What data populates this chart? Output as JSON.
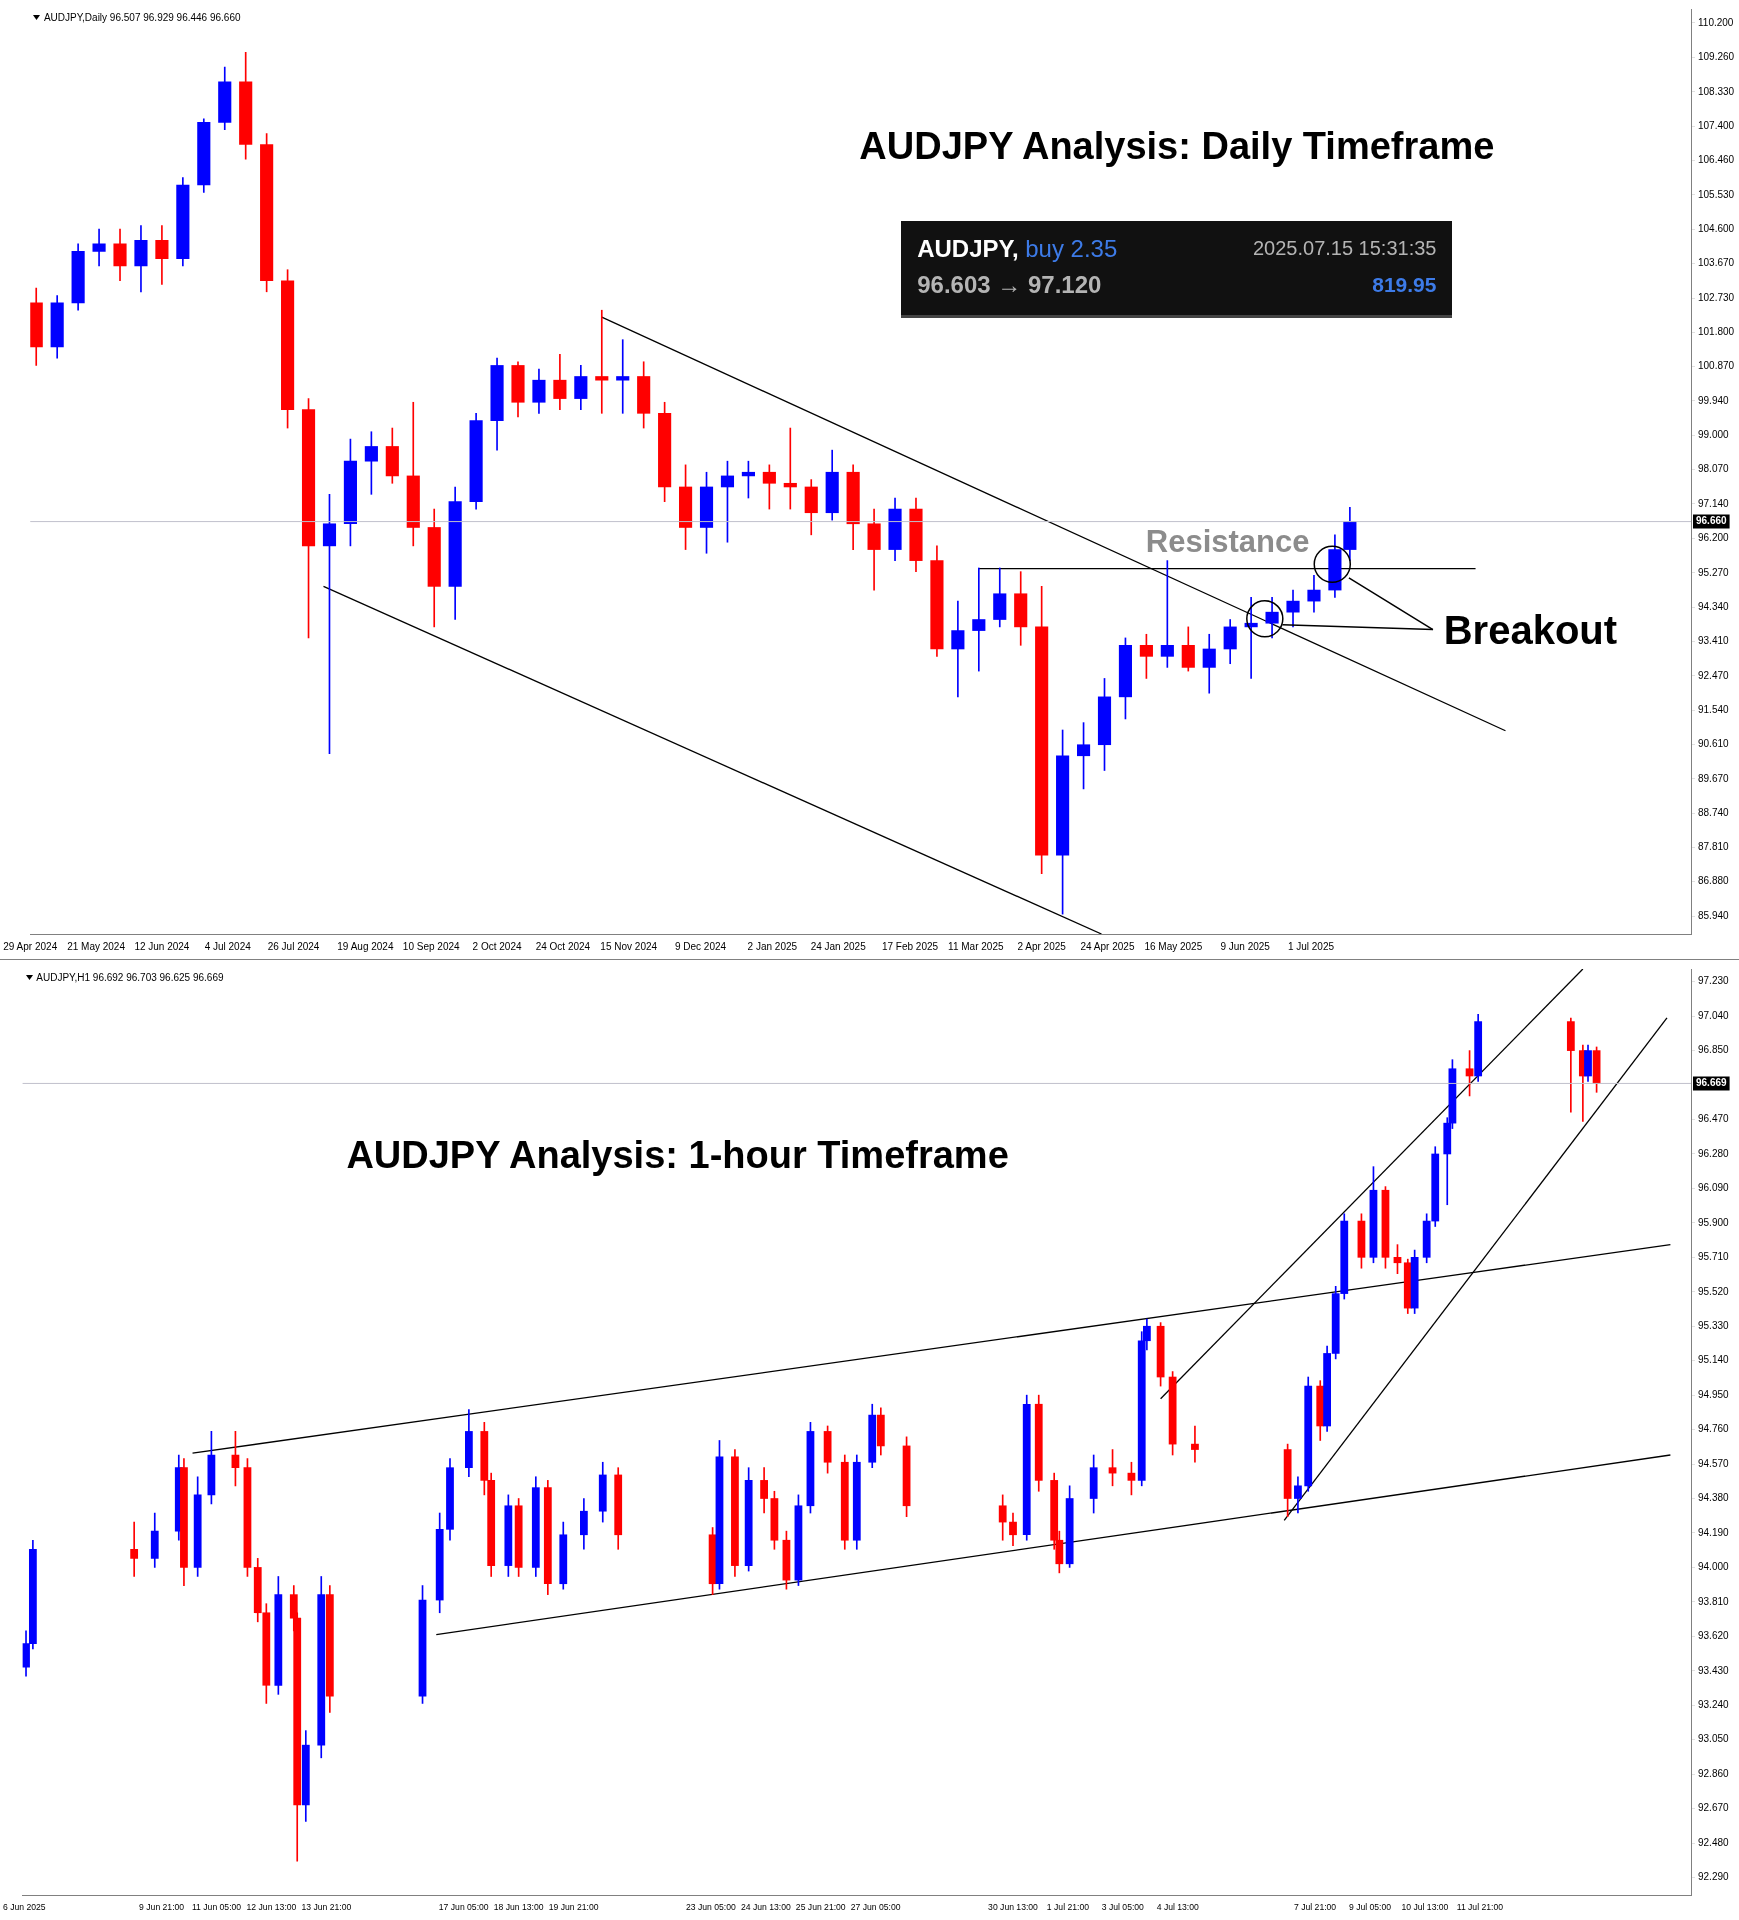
{
  "chart_data": [
    {
      "type": "candlestick",
      "title": "AUDJPY Analysis: Daily Timeframe",
      "annotations": [
        "AUDJPY,Daily  96.507 96.929 96.446 96.660",
        "AUDJPY,",
        "buy 2.35",
        "2025.07.15 15:31:35",
        "96.603 → 97.120",
        "819.95",
        "Resistance",
        "Breakout"
      ],
      "x": [
        "2024-05-01",
        "2024-05-08",
        "2024-05-15",
        "2024-05-22",
        "2024-05-29",
        "2024-06-05",
        "2024-06-12",
        "2024-06-19",
        "2024-06-26",
        "2024-07-03",
        "2024-07-10",
        "2024-07-17",
        "2024-07-24",
        "2024-07-31",
        "2024-08-07",
        "2024-08-14",
        "2024-08-21",
        "2024-08-28",
        "2024-09-04",
        "2024-09-11",
        "2024-09-18",
        "2024-09-25",
        "2024-10-02",
        "2024-10-09",
        "2024-10-16",
        "2024-10-23",
        "2024-10-30",
        "2024-11-06",
        "2024-11-13",
        "2024-11-20",
        "2024-11-27",
        "2024-12-04",
        "2024-12-11",
        "2024-12-18",
        "2024-12-25",
        "2025-01-01",
        "2025-01-08",
        "2025-01-15",
        "2025-01-22",
        "2025-01-29",
        "2025-02-05",
        "2025-02-12",
        "2025-02-19",
        "2025-02-26",
        "2025-03-05",
        "2025-03-12",
        "2025-03-19",
        "2025-03-26",
        "2025-04-02",
        "2025-04-09",
        "2025-04-16",
        "2025-04-23",
        "2025-04-30",
        "2025-05-07",
        "2025-05-14",
        "2025-05-21",
        "2025-05-28",
        "2025-06-04",
        "2025-06-11",
        "2025-06-18",
        "2025-06-25",
        "2025-07-02",
        "2025-07-09",
        "2025-07-14"
      ],
      "ohlc": [
        [
          102.6,
          103.0,
          100.9,
          101.4
        ],
        [
          101.4,
          102.8,
          101.1,
          102.6
        ],
        [
          102.6,
          104.2,
          102.4,
          104.0
        ],
        [
          104.0,
          104.6,
          103.6,
          104.2
        ],
        [
          104.2,
          104.6,
          103.2,
          103.6
        ],
        [
          103.6,
          104.7,
          102.9,
          104.3
        ],
        [
          104.3,
          104.7,
          103.1,
          103.8
        ],
        [
          103.8,
          106.0,
          103.6,
          105.8
        ],
        [
          105.8,
          107.6,
          105.6,
          107.5
        ],
        [
          107.5,
          109.0,
          107.3,
          108.6
        ],
        [
          108.6,
          109.4,
          106.5,
          106.9
        ],
        [
          106.9,
          107.2,
          102.9,
          103.2
        ],
        [
          103.2,
          103.5,
          99.2,
          99.7
        ],
        [
          99.7,
          100.0,
          93.5,
          96.0
        ],
        [
          96.0,
          97.4,
          90.36,
          96.6
        ],
        [
          96.6,
          98.9,
          96.0,
          98.3
        ],
        [
          98.3,
          99.1,
          97.4,
          98.7
        ],
        [
          98.7,
          99.2,
          97.7,
          97.9
        ],
        [
          97.9,
          99.9,
          96.0,
          96.5
        ],
        [
          96.5,
          97.0,
          93.8,
          94.9
        ],
        [
          94.9,
          97.6,
          94.0,
          97.2
        ],
        [
          97.2,
          99.6,
          97.0,
          99.4
        ],
        [
          99.4,
          101.1,
          98.6,
          100.9
        ],
        [
          100.9,
          101.0,
          99.5,
          99.9
        ],
        [
          99.9,
          100.8,
          99.6,
          100.5
        ],
        [
          100.5,
          101.2,
          99.7,
          100.0
        ],
        [
          100.0,
          100.9,
          99.7,
          100.6
        ],
        [
          100.6,
          102.4,
          99.6,
          100.5
        ],
        [
          100.5,
          101.6,
          99.6,
          100.6
        ],
        [
          100.6,
          101.0,
          99.2,
          99.6
        ],
        [
          99.6,
          99.9,
          97.2,
          97.6
        ],
        [
          97.6,
          98.2,
          95.9,
          96.5
        ],
        [
          96.5,
          98.0,
          95.8,
          97.6
        ],
        [
          97.6,
          98.3,
          96.1,
          97.9
        ],
        [
          97.9,
          98.3,
          97.3,
          98.0
        ],
        [
          98.0,
          98.2,
          97.0,
          97.7
        ],
        [
          97.7,
          99.2,
          97.0,
          97.6
        ],
        [
          97.6,
          97.8,
          96.3,
          96.9
        ],
        [
          96.9,
          98.6,
          96.7,
          98.0
        ],
        [
          98.0,
          98.2,
          95.9,
          96.6
        ],
        [
          96.6,
          97.0,
          94.8,
          95.9
        ],
        [
          95.9,
          97.3,
          95.6,
          97.0
        ],
        [
          97.0,
          97.3,
          95.3,
          95.6
        ],
        [
          95.6,
          96.0,
          93.0,
          93.2
        ],
        [
          93.2,
          94.5,
          91.9,
          93.7
        ],
        [
          93.7,
          95.4,
          92.6,
          94.0
        ],
        [
          94.0,
          95.4,
          93.8,
          94.7
        ],
        [
          94.7,
          95.3,
          93.3,
          93.8
        ],
        [
          93.8,
          94.9,
          87.1,
          87.6
        ],
        [
          87.6,
          91.0,
          86.0,
          90.3
        ],
        [
          90.3,
          91.2,
          89.4,
          90.6
        ],
        [
          90.6,
          92.4,
          89.9,
          91.9
        ],
        [
          91.9,
          93.5,
          91.3,
          93.3
        ],
        [
          93.3,
          93.6,
          92.4,
          93.0
        ],
        [
          93.0,
          95.6,
          92.7,
          93.3
        ],
        [
          93.3,
          93.8,
          92.6,
          92.7
        ],
        [
          92.7,
          93.6,
          92.0,
          93.2
        ],
        [
          93.2,
          94.0,
          92.8,
          93.8
        ],
        [
          93.8,
          94.6,
          92.4,
          93.9
        ],
        [
          93.9,
          94.6,
          93.5,
          94.2
        ],
        [
          94.2,
          94.8,
          93.8,
          94.5
        ],
        [
          94.5,
          95.2,
          94.2,
          94.8
        ],
        [
          94.8,
          96.3,
          94.6,
          95.9
        ],
        [
          95.9,
          97.05,
          95.6,
          96.66
        ]
      ],
      "colors": [
        "#ff0000",
        "#0000ff",
        "#0000ff",
        "#0000ff",
        "#ff0000",
        "#0000ff",
        "#ff0000",
        "#0000ff",
        "#0000ff",
        "#0000ff",
        "#ff0000",
        "#ff0000",
        "#ff0000",
        "#ff0000",
        "#0000ff",
        "#0000ff",
        "#0000ff",
        "#ff0000",
        "#ff0000",
        "#ff0000",
        "#0000ff",
        "#0000ff",
        "#0000ff",
        "#ff0000",
        "#0000ff",
        "#ff0000",
        "#0000ff",
        "#ff0000",
        "#0000ff",
        "#ff0000",
        "#ff0000",
        "#ff0000",
        "#0000ff",
        "#0000ff",
        "#0000ff",
        "#ff0000",
        "#ff0000",
        "#ff0000",
        "#0000ff",
        "#ff0000",
        "#ff0000",
        "#0000ff",
        "#ff0000",
        "#ff0000",
        "#0000ff",
        "#0000ff",
        "#0000ff",
        "#ff0000",
        "#ff0000",
        "#0000ff",
        "#0000ff",
        "#0000ff",
        "#0000ff",
        "#ff0000",
        "#0000ff",
        "#ff0000",
        "#0000ff",
        "#0000ff",
        "#0000ff",
        "#0000ff",
        "#0000ff",
        "#0000ff",
        "#0000ff",
        "#0000ff"
      ],
      "series": [
        {
          "type": "line",
          "color": "#000000",
          "x": [
            "2024-11-06",
            "2025-09-04"
          ],
          "values": [
            102.21,
            90.98
          ]
        },
        {
          "type": "line",
          "color": "#000000",
          "x": [
            "2024-08-05",
            "2025-04-22"
          ],
          "values": [
            94.9,
            85.46
          ]
        },
        {
          "type": "line",
          "color": "#000000",
          "x": [
            "2025-03-12",
            "2025-08-25"
          ],
          "values": [
            95.38,
            95.38
          ]
        }
      ],
      "ref_lines": [
        {
          "axis": "y",
          "value": 96.66,
          "label": "96.660",
          "color": "#c0c0cc"
        }
      ],
      "xlim": [
        "2024-04-29",
        "2025-11-05"
      ],
      "xticks": [
        {
          "value": "2024-04-29",
          "label": "29 Apr 2024"
        },
        {
          "value": "2024-05-21",
          "label": "21 May 2024"
        },
        {
          "value": "2024-06-12",
          "label": "12 Jun 2024"
        },
        {
          "value": "2024-07-04",
          "label": "4 Jul 2024"
        },
        {
          "value": "2024-07-26",
          "label": "26 Jul 2024"
        },
        {
          "value": "2024-08-19",
          "label": "19 Aug 2024"
        },
        {
          "value": "2024-09-10",
          "label": "10 Sep 2024"
        },
        {
          "value": "2024-10-02",
          "label": "2 Oct 2024"
        },
        {
          "value": "2024-10-24",
          "label": "24 Oct 2024"
        },
        {
          "value": "2024-11-15",
          "label": "15 Nov 2024"
        },
        {
          "value": "2024-12-09",
          "label": "9 Dec 2024"
        },
        {
          "value": "2025-01-02",
          "label": "2 Jan 2025"
        },
        {
          "value": "2025-01-24",
          "label": "24 Jan 2025"
        },
        {
          "value": "2025-02-17",
          "label": "17 Feb 2025"
        },
        {
          "value": "2025-03-11",
          "label": "11 Mar 2025"
        },
        {
          "value": "2025-04-02",
          "label": "2 Apr 2025"
        },
        {
          "value": "2025-04-24",
          "label": "24 Apr 2025"
        },
        {
          "value": "2025-05-16",
          "label": "16 May 2025"
        },
        {
          "value": "2025-06-09",
          "label": "9 Jun 2025"
        },
        {
          "value": "2025-07-01",
          "label": "1 Jul 2025"
        }
      ],
      "ylim": [
        85.46,
        110.58
      ],
      "yticks": [
        {
          "value": 110.2,
          "label": "110.200"
        },
        {
          "value": 109.26,
          "label": "109.260"
        },
        {
          "value": 108.33,
          "label": "108.330"
        },
        {
          "value": 107.4,
          "label": "107.400"
        },
        {
          "value": 106.46,
          "label": "106.460"
        },
        {
          "value": 105.53,
          "label": "105.530"
        },
        {
          "value": 104.6,
          "label": "104.600"
        },
        {
          "value": 103.67,
          "label": "103.670"
        },
        {
          "value": 102.73,
          "label": "102.730"
        },
        {
          "value": 101.8,
          "label": "101.800"
        },
        {
          "value": 100.87,
          "label": "100.870"
        },
        {
          "value": 99.94,
          "label": "99.940"
        },
        {
          "value": 99,
          "label": "99.000"
        },
        {
          "value": 98.07,
          "label": "98.070"
        },
        {
          "value": 97.14,
          "label": "97.140"
        },
        {
          "value": 96.2,
          "label": "96.200"
        },
        {
          "value": 95.27,
          "label": "95.270"
        },
        {
          "value": 94.34,
          "label": "94.340"
        },
        {
          "value": 93.41,
          "label": "93.410"
        },
        {
          "value": 92.47,
          "label": "92.470"
        },
        {
          "value": 91.54,
          "label": "91.540"
        },
        {
          "value": 90.61,
          "label": "90.610"
        },
        {
          "value": 89.67,
          "label": "89.670"
        },
        {
          "value": 88.74,
          "label": "88.740"
        },
        {
          "value": 87.81,
          "label": "87.810"
        },
        {
          "value": 86.88,
          "label": "86.880"
        },
        {
          "value": 85.94,
          "label": "85.940"
        }
      ]
    },
    {
      "type": "candlestick",
      "title": "AUDJPY Analysis: 1-hour Timeframe",
      "annotations": [
        "AUDJPY,H1  96.692 96.703 96.625 96.669"
      ],
      "x": [
        "2025-06-06T14:00",
        "2025-06-06T18:00",
        "2025-06-09T05:00",
        "2025-06-09T17:00",
        "2025-06-10T07:00",
        "2025-06-10T10:00",
        "2025-06-10T18:00",
        "2025-06-11T02:00",
        "2025-06-11T16:00",
        "2025-06-11T23:00",
        "2025-06-12T05:00",
        "2025-06-12T10:00",
        "2025-06-12T17:00",
        "2025-06-13T02:00",
        "2025-06-13T04:00",
        "2025-06-13T09:00",
        "2025-06-13T18:00",
        "2025-06-13T23:00",
        "2025-06-16T05:00",
        "2025-06-16T15:00",
        "2025-06-16T21:00",
        "2025-06-17T08:00",
        "2025-06-17T17:00",
        "2025-06-17T21:00",
        "2025-06-18T07:00",
        "2025-06-18T13:00",
        "2025-06-18T23:00",
        "2025-06-19T06:00",
        "2025-06-19T15:00",
        "2025-06-20T03:00",
        "2025-06-20T14:00",
        "2025-06-20T23:00",
        "2025-06-23T06:00",
        "2025-06-23T10:00",
        "2025-06-23T19:00",
        "2025-06-24T03:00",
        "2025-06-24T12:00",
        "2025-06-24T18:00",
        "2025-06-25T01:00",
        "2025-06-25T08:00",
        "2025-06-25T15:00",
        "2025-06-26T01:00",
        "2025-06-26T11:00",
        "2025-06-26T18:00",
        "2025-06-27T03:00",
        "2025-06-27T08:00",
        "2025-06-27T23:00",
        "2025-06-30T07:00",
        "2025-06-30T13:00",
        "2025-06-30T21:00",
        "2025-07-01T04:00",
        "2025-07-01T13:00",
        "2025-07-01T16:00",
        "2025-07-01T22:00",
        "2025-07-02T12:00",
        "2025-07-02T23:00",
        "2025-07-03T10:00",
        "2025-07-03T16:00",
        "2025-07-03T19:00",
        "2025-07-04T03:00",
        "2025-07-04T10:00",
        "2025-07-04T23:00",
        "2025-07-07T05:00",
        "2025-07-07T11:00",
        "2025-07-07T17:00",
        "2025-07-08T00:00",
        "2025-07-08T04:00",
        "2025-07-08T09:00",
        "2025-07-08T14:00",
        "2025-07-09T00:00",
        "2025-07-09T07:00",
        "2025-07-09T14:00",
        "2025-07-09T21:00",
        "2025-07-10T03:00",
        "2025-07-10T07:00",
        "2025-07-10T14:00",
        "2025-07-10T19:00",
        "2025-07-11T02:00",
        "2025-07-11T05:00",
        "2025-07-11T15:00",
        "2025-07-11T20:00",
        "2025-07-14T02:00",
        "2025-07-14T09:00",
        "2025-07-14T12:00",
        "2025-07-14T17:00"
      ],
      "ohlc": [
        [
          93.45,
          93.65,
          93.4,
          93.58
        ],
        [
          93.58,
          94.15,
          93.55,
          94.1
        ],
        [
          94.1,
          94.25,
          93.95,
          94.05
        ],
        [
          94.05,
          94.3,
          94.0,
          94.2
        ],
        [
          94.2,
          94.62,
          94.15,
          94.55
        ],
        [
          94.55,
          94.6,
          93.9,
          94.0
        ],
        [
          94.0,
          94.5,
          93.95,
          94.4
        ],
        [
          94.4,
          94.75,
          94.35,
          94.62
        ],
        [
          94.62,
          94.75,
          94.45,
          94.55
        ],
        [
          94.55,
          94.6,
          93.95,
          94.0
        ],
        [
          94.0,
          94.05,
          93.7,
          93.75
        ],
        [
          93.75,
          93.8,
          93.25,
          93.35
        ],
        [
          93.35,
          93.95,
          93.3,
          93.85
        ],
        [
          93.85,
          93.9,
          93.65,
          93.72
        ],
        [
          93.72,
          93.75,
          92.38,
          92.69
        ],
        [
          92.69,
          93.1,
          92.6,
          93.02
        ],
        [
          93.02,
          93.95,
          92.95,
          93.85
        ],
        [
          93.85,
          93.9,
          93.2,
          93.29
        ],
        [
          93.29,
          93.9,
          93.25,
          93.82
        ],
        [
          93.82,
          94.3,
          93.75,
          94.21
        ],
        [
          94.21,
          94.6,
          94.15,
          94.55
        ],
        [
          94.55,
          94.87,
          94.5,
          94.75
        ],
        [
          94.75,
          94.8,
          94.4,
          94.48
        ],
        [
          94.48,
          94.52,
          93.95,
          94.01
        ],
        [
          94.01,
          94.4,
          93.95,
          94.34
        ],
        [
          94.34,
          94.38,
          93.95,
          94.0
        ],
        [
          94.0,
          94.5,
          93.95,
          94.44
        ],
        [
          94.44,
          94.48,
          93.85,
          93.91
        ],
        [
          93.91,
          94.25,
          93.88,
          94.18
        ],
        [
          94.18,
          94.38,
          94.1,
          94.31
        ],
        [
          94.31,
          94.58,
          94.25,
          94.51
        ],
        [
          94.51,
          94.55,
          94.1,
          94.18
        ],
        [
          94.18,
          94.22,
          93.85,
          93.91
        ],
        [
          93.91,
          94.7,
          93.88,
          94.61
        ],
        [
          94.61,
          94.65,
          93.95,
          94.01
        ],
        [
          94.01,
          94.55,
          93.98,
          94.48
        ],
        [
          94.48,
          94.55,
          94.3,
          94.38
        ],
        [
          94.38,
          94.42,
          94.1,
          94.15
        ],
        [
          94.15,
          94.2,
          93.88,
          93.93
        ],
        [
          93.93,
          94.4,
          93.9,
          94.34
        ],
        [
          94.34,
          94.8,
          94.3,
          94.75
        ],
        [
          94.75,
          94.78,
          94.52,
          94.58
        ],
        [
          94.58,
          94.62,
          94.1,
          94.15
        ],
        [
          94.15,
          94.62,
          94.1,
          94.58
        ],
        [
          94.58,
          94.9,
          94.55,
          94.84
        ],
        [
          94.84,
          94.88,
          94.62,
          94.67
        ],
        [
          94.67,
          94.72,
          94.28,
          94.34
        ],
        [
          94.34,
          94.4,
          94.15,
          94.25
        ],
        [
          94.25,
          94.3,
          94.12,
          94.18
        ],
        [
          94.18,
          94.95,
          94.15,
          94.9
        ],
        [
          94.9,
          94.95,
          94.42,
          94.48
        ],
        [
          94.48,
          94.52,
          94.1,
          94.15
        ],
        [
          94.15,
          94.2,
          93.97,
          94.02
        ],
        [
          94.02,
          94.45,
          94.0,
          94.38
        ],
        [
          94.38,
          94.62,
          94.3,
          94.55
        ],
        [
          94.55,
          94.65,
          94.45,
          94.52
        ],
        [
          94.52,
          94.58,
          94.4,
          94.48
        ],
        [
          94.48,
          95.3,
          94.45,
          95.25
        ],
        [
          95.25,
          95.37,
          95.2,
          95.33
        ],
        [
          95.33,
          95.35,
          95.0,
          95.05
        ],
        [
          95.05,
          95.08,
          94.62,
          94.68
        ],
        [
          94.68,
          94.78,
          94.58,
          94.65
        ],
        [
          94.65,
          94.68,
          94.28,
          94.38
        ],
        [
          94.38,
          94.5,
          94.3,
          94.45
        ],
        [
          94.45,
          95.05,
          94.42,
          95.0
        ],
        [
          95.0,
          95.03,
          94.7,
          94.78
        ],
        [
          94.78,
          95.22,
          94.75,
          95.18
        ],
        [
          95.18,
          95.55,
          95.15,
          95.51
        ],
        [
          95.51,
          95.95,
          95.48,
          95.91
        ],
        [
          95.91,
          95.95,
          95.65,
          95.71
        ],
        [
          95.71,
          96.21,
          95.68,
          96.08
        ],
        [
          96.08,
          96.1,
          95.65,
          95.71
        ],
        [
          95.71,
          95.78,
          95.62,
          95.68
        ],
        [
          95.68,
          95.7,
          95.4,
          95.43
        ],
        [
          95.43,
          95.75,
          95.4,
          95.71
        ],
        [
          95.71,
          95.95,
          95.68,
          95.91
        ],
        [
          95.91,
          96.32,
          95.88,
          96.28
        ],
        [
          96.28,
          96.48,
          96.0,
          96.45
        ],
        [
          96.45,
          96.8,
          96.42,
          96.75
        ],
        [
          96.75,
          96.85,
          96.6,
          96.71
        ],
        [
          96.71,
          97.05,
          96.68,
          97.01
        ],
        [
          97.01,
          97.03,
          96.51,
          96.85
        ],
        [
          96.85,
          96.88,
          96.46,
          96.71
        ],
        [
          96.71,
          96.88,
          96.68,
          96.85
        ],
        [
          96.85,
          96.87,
          96.62,
          96.669
        ]
      ],
      "colors": [
        "#0000ff",
        "#0000ff",
        "#ff0000",
        "#0000ff",
        "#0000ff",
        "#ff0000",
        "#0000ff",
        "#0000ff",
        "#ff0000",
        "#ff0000",
        "#ff0000",
        "#ff0000",
        "#0000ff",
        "#ff0000",
        "#ff0000",
        "#0000ff",
        "#0000ff",
        "#ff0000",
        "#0000ff",
        "#0000ff",
        "#0000ff",
        "#0000ff",
        "#ff0000",
        "#ff0000",
        "#0000ff",
        "#ff0000",
        "#0000ff",
        "#ff0000",
        "#0000ff",
        "#0000ff",
        "#0000ff",
        "#ff0000",
        "#ff0000",
        "#0000ff",
        "#ff0000",
        "#0000ff",
        "#ff0000",
        "#ff0000",
        "#ff0000",
        "#0000ff",
        "#0000ff",
        "#ff0000",
        "#ff0000",
        "#0000ff",
        "#0000ff",
        "#ff0000",
        "#ff0000",
        "#ff0000",
        "#ff0000",
        "#0000ff",
        "#ff0000",
        "#ff0000",
        "#ff0000",
        "#0000ff",
        "#0000ff",
        "#ff0000",
        "#ff0000",
        "#0000ff",
        "#0000ff",
        "#ff0000",
        "#ff0000",
        "#ff0000",
        "#ff0000",
        "#0000ff",
        "#0000ff",
        "#ff0000",
        "#0000ff",
        "#0000ff",
        "#0000ff",
        "#ff0000",
        "#0000ff",
        "#ff0000",
        "#ff0000",
        "#ff0000",
        "#0000ff",
        "#0000ff",
        "#0000ff",
        "#0000ff",
        "#0000ff",
        "#ff0000",
        "#0000ff",
        "#ff0000",
        "#ff0000",
        "#0000ff",
        "#ff0000"
      ],
      "series": [
        {
          "type": "line",
          "color": "#000000",
          "x": [
            "2025-06-10T15:00",
            "2025-07-16T12:00"
          ],
          "values": [
            94.63,
            95.78
          ]
        },
        {
          "type": "line",
          "color": "#000000",
          "x": [
            "2025-06-16T13:00",
            "2025-07-16T12:00"
          ],
          "values": [
            93.63,
            94.62
          ]
        },
        {
          "type": "line",
          "color": "#000000",
          "x": [
            "2025-07-04T03:00",
            "2025-07-14T09:00"
          ],
          "values": [
            94.93,
            97.3
          ]
        },
        {
          "type": "line",
          "color": "#000000",
          "x": [
            "2025-07-07T03:00",
            "2025-07-16T10:00"
          ],
          "values": [
            94.26,
            97.03
          ]
        }
      ],
      "ref_lines": [
        {
          "axis": "y",
          "value": 96.669,
          "label": "96.669",
          "color": "#c0c0cc"
        }
      ],
      "xlim": [
        "2025-06-06T12:00",
        "2025-07-17T00:00"
      ],
      "xticks": [
        {
          "value": "2025-06-06T13:00",
          "label": "6 Jun 2025"
        },
        {
          "value": "2025-06-09T21:00",
          "label": "9 Jun 21:00"
        },
        {
          "value": "2025-06-11T05:00",
          "label": "11 Jun 05:00"
        },
        {
          "value": "2025-06-12T13:00",
          "label": "12 Jun 13:00"
        },
        {
          "value": "2025-06-13T21:00",
          "label": "13 Jun 21:00"
        },
        {
          "value": "2025-06-17T05:00",
          "label": "17 Jun 05:00"
        },
        {
          "value": "2025-06-18T13:00",
          "label": "18 Jun 13:00"
        },
        {
          "value": "2025-06-19T21:00",
          "label": "19 Jun 21:00"
        },
        {
          "value": "2025-06-23T05:00",
          "label": "23 Jun 05:00"
        },
        {
          "value": "2025-06-24T13:00",
          "label": "24 Jun 13:00"
        },
        {
          "value": "2025-06-25T21:00",
          "label": "25 Jun 21:00"
        },
        {
          "value": "2025-06-27T05:00",
          "label": "27 Jun 05:00"
        },
        {
          "value": "2025-06-30T13:00",
          "label": "30 Jun 13:00"
        },
        {
          "value": "2025-07-01T21:00",
          "label": "1 Jul 21:00"
        },
        {
          "value": "2025-07-03T05:00",
          "label": "3 Jul 05:00"
        },
        {
          "value": "2025-07-04T13:00",
          "label": "4 Jul 13:00"
        },
        {
          "value": "2025-07-07T21:00",
          "label": "7 Jul 21:00"
        },
        {
          "value": "2025-07-09T05:00",
          "label": "9 Jul 05:00"
        },
        {
          "value": "2025-07-10T13:00",
          "label": "10 Jul 13:00"
        },
        {
          "value": "2025-07-11T21:00",
          "label": "11 Jul 21:00"
        }
      ],
      "ylim": [
        92.19,
        97.3
      ],
      "yticks": [
        {
          "value": 97.23,
          "label": "97.230"
        },
        {
          "value": 97.04,
          "label": "97.040"
        },
        {
          "value": 96.85,
          "label": "96.850"
        },
        {
          "value": 96.47,
          "label": "96.470"
        },
        {
          "value": 96.28,
          "label": "96.280"
        },
        {
          "value": 96.09,
          "label": "96.090"
        },
        {
          "value": 95.9,
          "label": "95.900"
        },
        {
          "value": 95.71,
          "label": "95.710"
        },
        {
          "value": 95.52,
          "label": "95.520"
        },
        {
          "value": 95.33,
          "label": "95.330"
        },
        {
          "value": 95.14,
          "label": "95.140"
        },
        {
          "value": 94.95,
          "label": "94.950"
        },
        {
          "value": 94.76,
          "label": "94.760"
        },
        {
          "value": 94.57,
          "label": "94.570"
        },
        {
          "value": 94.38,
          "label": "94.380"
        },
        {
          "value": 94.19,
          "label": "94.190"
        },
        {
          "value": 94,
          "label": "94.000"
        },
        {
          "value": 93.81,
          "label": "93.810"
        },
        {
          "value": 93.62,
          "label": "93.620"
        },
        {
          "value": 93.43,
          "label": "93.430"
        },
        {
          "value": 93.24,
          "label": "93.240"
        },
        {
          "value": 93.05,
          "label": "93.050"
        },
        {
          "value": 92.86,
          "label": "92.860"
        },
        {
          "value": 92.67,
          "label": "92.670"
        },
        {
          "value": 92.48,
          "label": "92.480"
        },
        {
          "value": 92.29,
          "label": "92.290"
        }
      ]
    }
  ]
}
